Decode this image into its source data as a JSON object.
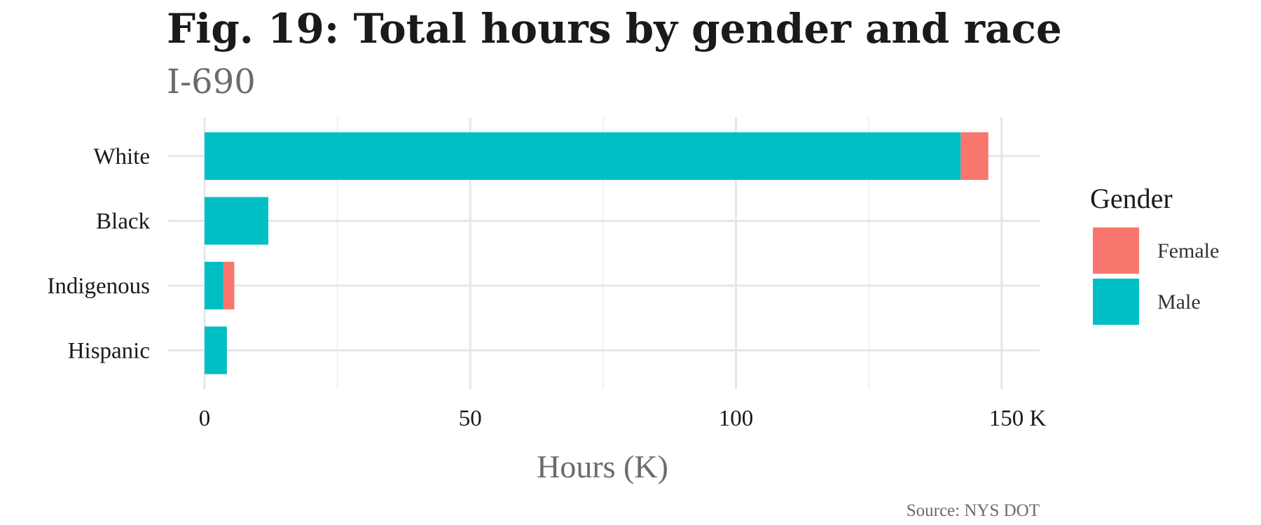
{
  "chart_data": {
    "type": "bar",
    "orientation": "horizontal",
    "stacked": true,
    "title": "Fig. 19: Total hours by gender and race",
    "subtitle": "I-690",
    "xlabel": "Hours (K)",
    "ylabel": "",
    "categories": [
      "White",
      "Black",
      "Indigenous",
      "Hispanic"
    ],
    "series": [
      {
        "name": "Male",
        "color": "#00BFC4",
        "values": [
          142.3,
          12.0,
          3.5,
          4.2
        ]
      },
      {
        "name": "Female",
        "color": "#F8766D",
        "values": [
          5.2,
          0.0,
          2.1,
          0.0
        ]
      }
    ],
    "xlim": [
      0,
      157
    ],
    "xticks": [
      0,
      50,
      100,
      150
    ],
    "xtick_labels": [
      "0",
      "50",
      "100",
      "150 K"
    ],
    "grid": true,
    "legend": {
      "title": "Gender",
      "position": "right",
      "entries": [
        "Female",
        "Male"
      ]
    },
    "caption": "Source: NYS DOT"
  }
}
